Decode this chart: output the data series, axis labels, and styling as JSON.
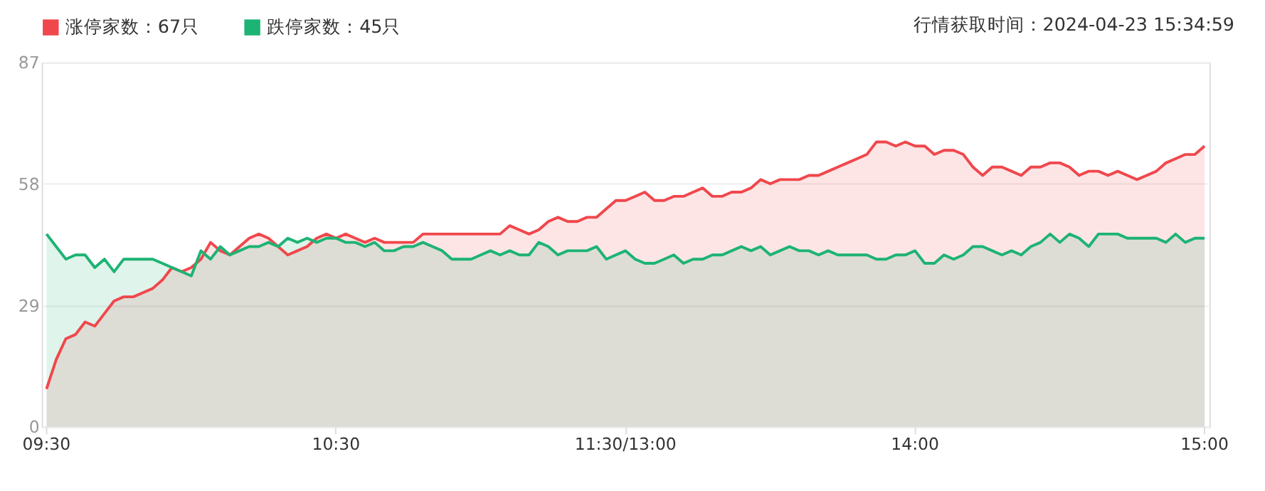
{
  "chart_data": {
    "type": "area",
    "annotations": [
      "行情获取时间：2024-04-23 15:34:59"
    ],
    "categories": [
      "09:30",
      null,
      null,
      null,
      null,
      null,
      null,
      null,
      null,
      null,
      null,
      null,
      null,
      null,
      null,
      null,
      null,
      null,
      null,
      null,
      null,
      null,
      null,
      null,
      null,
      null,
      null,
      null,
      null,
      null,
      "10:30",
      null,
      null,
      null,
      null,
      null,
      null,
      null,
      null,
      null,
      null,
      null,
      null,
      null,
      null,
      null,
      null,
      null,
      null,
      null,
      null,
      null,
      null,
      null,
      null,
      null,
      null,
      null,
      null,
      null,
      "11:30/13:00",
      null,
      null,
      null,
      null,
      null,
      null,
      null,
      null,
      null,
      null,
      null,
      null,
      null,
      null,
      null,
      null,
      null,
      null,
      null,
      null,
      null,
      null,
      null,
      null,
      null,
      null,
      null,
      null,
      null,
      "14:00",
      null,
      null,
      null,
      null,
      null,
      null,
      null,
      null,
      null,
      null,
      null,
      null,
      null,
      null,
      null,
      null,
      null,
      null,
      null,
      null,
      null,
      null,
      null,
      null,
      null,
      null,
      null,
      null,
      null,
      "15:00"
    ],
    "ylim": [
      0,
      87
    ],
    "yticks": [
      0,
      29,
      58,
      87
    ],
    "grid": "y",
    "legend": "top left",
    "marker": "none",
    "line_style": "solid",
    "series": [
      {
        "name": "涨停家数：67只",
        "color": "#f0474c",
        "values": [
          9,
          16,
          21,
          22,
          25,
          24,
          27,
          30,
          31,
          31,
          32,
          33,
          35,
          38,
          37,
          38,
          40,
          44,
          42,
          41,
          43,
          45,
          46,
          45,
          43,
          41,
          42,
          43,
          45,
          46,
          45,
          46,
          45,
          44,
          45,
          44,
          44,
          44,
          44,
          46,
          46,
          46,
          46,
          46,
          46,
          46,
          46,
          46,
          48,
          47,
          46,
          47,
          49,
          50,
          49,
          49,
          50,
          50,
          52,
          54,
          54,
          55,
          56,
          54,
          54,
          55,
          55,
          56,
          57,
          55,
          55,
          56,
          56,
          57,
          59,
          58,
          59,
          59,
          59,
          60,
          60,
          61,
          62,
          63,
          64,
          65,
          68,
          68,
          67,
          68,
          67,
          67,
          65,
          66,
          66,
          65,
          62,
          60,
          62,
          62,
          61,
          60,
          62,
          62,
          63,
          63,
          62,
          60,
          61,
          61,
          60,
          61,
          60,
          59,
          60,
          61,
          63,
          64,
          65,
          65,
          67
        ]
      },
      {
        "name": "跌停家数：45只",
        "color": "#1db374",
        "values": [
          46,
          43,
          40,
          41,
          41,
          38,
          40,
          37,
          40,
          40,
          40,
          40,
          39,
          38,
          37,
          36,
          42,
          40,
          43,
          41,
          42,
          43,
          43,
          44,
          43,
          45,
          44,
          45,
          44,
          45,
          45,
          44,
          44,
          43,
          44,
          42,
          42,
          43,
          43,
          44,
          43,
          42,
          40,
          40,
          40,
          41,
          42,
          41,
          42,
          41,
          41,
          44,
          43,
          41,
          42,
          42,
          42,
          43,
          40,
          41,
          42,
          40,
          39,
          39,
          40,
          41,
          39,
          40,
          40,
          41,
          41,
          42,
          43,
          42,
          43,
          41,
          42,
          43,
          42,
          42,
          41,
          42,
          41,
          41,
          41,
          41,
          40,
          40,
          41,
          41,
          42,
          39,
          39,
          41,
          40,
          41,
          43,
          43,
          42,
          41,
          42,
          41,
          43,
          44,
          46,
          44,
          46,
          45,
          43,
          46,
          46,
          46,
          45,
          45,
          45,
          45,
          44,
          46,
          44,
          45,
          45
        ]
      }
    ]
  }
}
